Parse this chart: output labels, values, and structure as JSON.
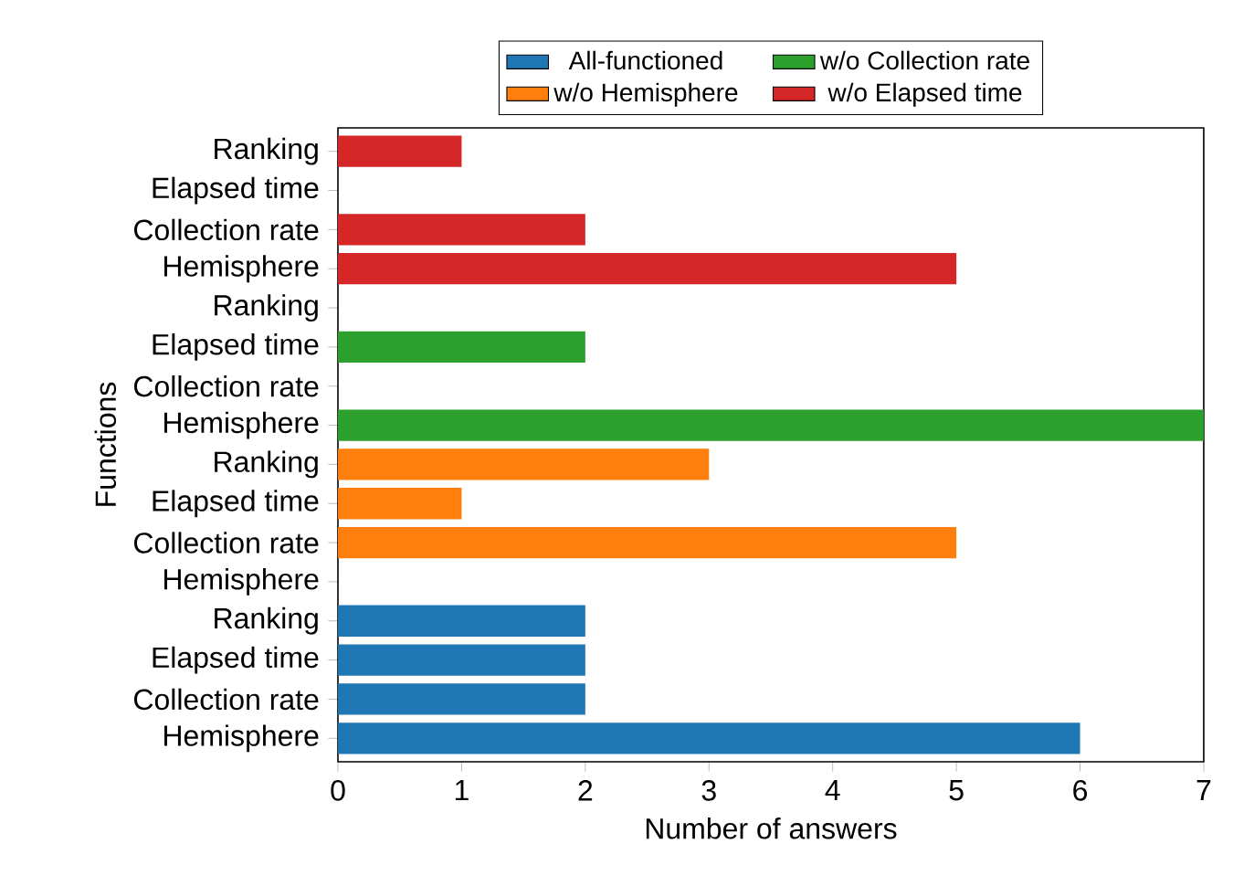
{
  "chart_data": {
    "type": "bar",
    "orientation": "horizontal",
    "xlabel": "Number of answers",
    "ylabel": "Functions",
    "categories": [
      "Ranking",
      "Elapsed time",
      "Collection rate",
      "Hemisphere",
      "Ranking",
      "Elapsed time",
      "Collection rate",
      "Hemisphere",
      "Ranking",
      "Elapsed time",
      "Collection rate",
      "Hemisphere",
      "Ranking",
      "Elapsed time",
      "Collection rate",
      "Hemisphere"
    ],
    "series": [
      {
        "name": "All-functioned",
        "color": "#1f77b4",
        "values": [
          null,
          null,
          null,
          null,
          null,
          null,
          null,
          null,
          null,
          null,
          null,
          null,
          2,
          2,
          2,
          6
        ]
      },
      {
        "name": "w/o Hemisphere",
        "color": "#ff7f0e",
        "values": [
          null,
          null,
          null,
          null,
          null,
          null,
          null,
          null,
          3,
          1,
          5,
          0,
          null,
          null,
          null,
          null
        ]
      },
      {
        "name": "w/o Collection rate",
        "color": "#2ca02c",
        "values": [
          null,
          null,
          null,
          null,
          0,
          2,
          0,
          7,
          null,
          null,
          null,
          null,
          null,
          null,
          null,
          null
        ]
      },
      {
        "name": "w/o Elapsed time",
        "color": "#d62728",
        "values": [
          1,
          0,
          2,
          5,
          null,
          null,
          null,
          null,
          null,
          null,
          null,
          null,
          null,
          null,
          null,
          null
        ]
      }
    ],
    "xlim": [
      0,
      7
    ],
    "xticks": [
      0,
      1,
      2,
      3,
      4,
      5,
      6,
      7
    ],
    "grid": false,
    "legend": "top"
  }
}
